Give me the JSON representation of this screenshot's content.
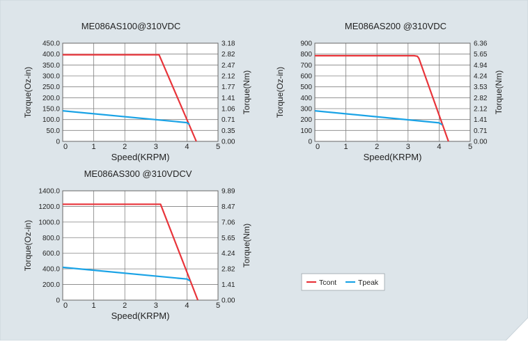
{
  "colors": {
    "panel_bg": "#dde5ea",
    "plot_bg": "#ffffff",
    "grid": "#808080",
    "axis": "#666666",
    "tcont": "#e8343a",
    "tpeak": "#1aa3e6"
  },
  "legend": {
    "items": [
      {
        "label": "Tcont",
        "color": "#e8343a"
      },
      {
        "label": "Tpeak",
        "color": "#1aa3e6"
      }
    ]
  },
  "chart_data": [
    {
      "type": "line",
      "title": "ME086AS100@310VDC",
      "xlabel": "Speed(KRPM)",
      "ylabel": "Torque(Oz-in)",
      "y2label": "Torque(Nm)",
      "xlim": [
        0,
        5
      ],
      "ylim": [
        0,
        450
      ],
      "x_ticks": [
        "0",
        "1",
        "2",
        "3",
        "4",
        "5"
      ],
      "y_ticks": [
        "0",
        "50.0",
        "100.0",
        "150.0",
        "200.0",
        "250.0",
        "300.0",
        "350.0",
        "400.0",
        "450.0"
      ],
      "y2_ticks": [
        "0.00",
        "0.35",
        "0.71",
        "1.06",
        "1.41",
        "1.77",
        "2.12",
        "2.47",
        "2.82",
        "3.18"
      ],
      "grid": true,
      "series": [
        {
          "name": "Tcont",
          "color": "#e8343a",
          "x": [
            0,
            3.1,
            4.3
          ],
          "y": [
            397,
            397,
            0
          ]
        },
        {
          "name": "Tpeak",
          "color": "#1aa3e6",
          "x": [
            0,
            4.0,
            4.08
          ],
          "y": [
            140,
            86,
            77
          ]
        }
      ]
    },
    {
      "type": "line",
      "title": "ME086AS200 @310VDC",
      "xlabel": "Speed(KRPM)",
      "ylabel": "Torque(Oz-in)",
      "y2label": "Torque(Nm)",
      "xlim": [
        0,
        5
      ],
      "ylim": [
        0,
        900
      ],
      "x_ticks": [
        "0",
        "1",
        "2",
        "3",
        "4",
        "5"
      ],
      "y_ticks": [
        "0",
        "100",
        "200",
        "300",
        "400",
        "500",
        "600",
        "700",
        "800",
        "900"
      ],
      "y2_ticks": [
        "0.00",
        "0.71",
        "1.41",
        "2.12",
        "2.82",
        "3.53",
        "4.24",
        "4.94",
        "5.65",
        "6.36"
      ],
      "grid": true,
      "series": [
        {
          "name": "Tcont",
          "color": "#e8343a",
          "x": [
            0,
            3.2,
            3.3,
            3.35,
            4.3
          ],
          "y": [
            785,
            785,
            780,
            760,
            0
          ]
        },
        {
          "name": "Tpeak",
          "color": "#1aa3e6",
          "x": [
            0,
            4.0,
            4.1
          ],
          "y": [
            280,
            170,
            152
          ]
        }
      ]
    },
    {
      "type": "line",
      "title": "ME086AS300 @310VDCV",
      "xlabel": "Speed(KRPM)",
      "ylabel": "Torque(Oz-in)",
      "y2label": "Torque(Nm)",
      "xlim": [
        0,
        5
      ],
      "ylim": [
        0,
        1400
      ],
      "x_ticks": [
        "0",
        "1",
        "2",
        "3",
        "4",
        "5"
      ],
      "y_ticks": [
        "0",
        "200.0",
        "400.0",
        "600.0",
        "800.0",
        "1000.0",
        "1200.0",
        "1400.0"
      ],
      "y2_ticks": [
        "0.00",
        "1.41",
        "2.82",
        "4.24",
        "5.65",
        "7.06",
        "8.47",
        "9.89"
      ],
      "grid": true,
      "series": [
        {
          "name": "Tcont",
          "color": "#e8343a",
          "x": [
            0,
            3.15,
            4.35
          ],
          "y": [
            1228,
            1228,
            0
          ]
        },
        {
          "name": "Tpeak",
          "color": "#1aa3e6",
          "x": [
            0,
            4.0,
            4.1
          ],
          "y": [
            420,
            270,
            245
          ]
        }
      ]
    }
  ]
}
